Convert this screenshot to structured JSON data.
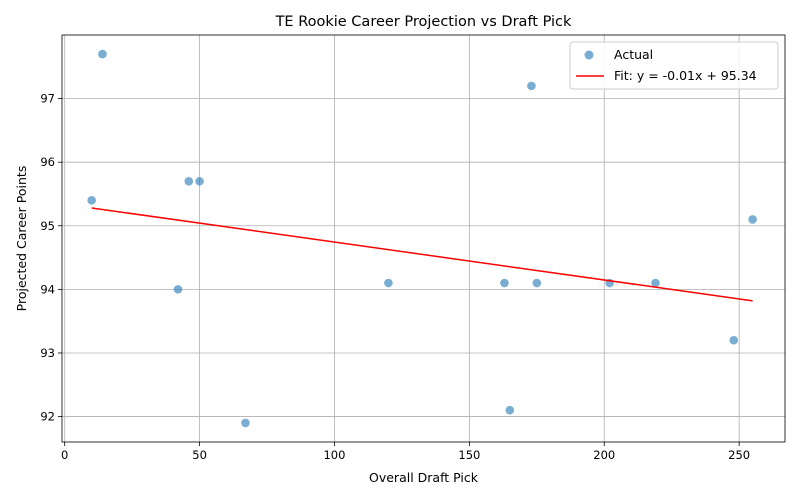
{
  "chart_data": {
    "type": "scatter",
    "title": "TE Rookie Career Projection vs Draft Pick",
    "xlabel": "Overall Draft Pick",
    "ylabel": "Projected Career Points",
    "xlim": [
      -1,
      267
    ],
    "ylim": [
      91.6,
      98
    ],
    "xticks": [
      0,
      50,
      100,
      150,
      200,
      250
    ],
    "yticks": [
      92,
      93,
      94,
      95,
      96,
      97
    ],
    "grid": true,
    "legend_position": "upper-right",
    "series": [
      {
        "name": "Actual",
        "kind": "scatter",
        "color": "#1f77b4",
        "x": [
          14,
          173,
          46,
          50,
          10,
          255,
          42,
          120,
          163,
          175,
          202,
          219,
          248,
          165,
          67
        ],
        "y": [
          97.7,
          97.2,
          95.7,
          95.7,
          95.4,
          95.1,
          94.0,
          94.1,
          94.1,
          94.1,
          94.1,
          94.1,
          93.2,
          92.1,
          91.9
        ]
      },
      {
        "name": "Fit: y = -0.01x + 95.34",
        "kind": "line",
        "color": "#ff0000",
        "x": [
          10,
          255
        ],
        "y": [
          95.28,
          93.82
        ]
      }
    ]
  }
}
